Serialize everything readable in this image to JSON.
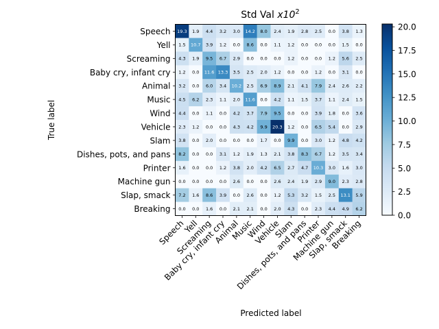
{
  "chart_data": {
    "type": "heatmap",
    "title": "Std Val ",
    "title_math": "x10",
    "title_exponent": "2",
    "xlabel": "Predicted label",
    "ylabel": "True label",
    "x_categories": [
      "Speech",
      "Yell",
      "Screaming",
      "Baby cry, infant cry",
      "Animal",
      "Music",
      "Wind",
      "Vehicle",
      "Slam",
      "Dishes, pots, and pans",
      "Printer",
      "Machine gun",
      "Slap, smack",
      "Breaking"
    ],
    "y_categories": [
      "Speech",
      "Yell",
      "Screaming",
      "Baby cry, infant cry",
      "Animal",
      "Music",
      "Wind",
      "Vehicle",
      "Slam",
      "Dishes, pots, and pans",
      "Printer",
      "Machine gun",
      "Slap, smack",
      "Breaking"
    ],
    "values": [
      [
        19.3,
        1.9,
        4.4,
        3.2,
        3.0,
        14.2,
        8.0,
        2.4,
        1.9,
        2.8,
        2.5,
        0.0,
        3.8,
        1.3
      ],
      [
        1.5,
        10.7,
        3.9,
        1.2,
        0.0,
        8.6,
        0.0,
        1.1,
        1.2,
        0.0,
        0.0,
        0.0,
        1.5,
        0.0
      ],
      [
        4.3,
        1.9,
        9.5,
        6.7,
        2.9,
        0.0,
        0.0,
        0.0,
        1.2,
        0.0,
        0.0,
        1.2,
        5.6,
        2.5
      ],
      [
        1.2,
        0.0,
        11.6,
        13.3,
        3.5,
        2.5,
        2.0,
        1.2,
        0.0,
        0.0,
        1.2,
        0.0,
        3.1,
        0.0
      ],
      [
        3.2,
        0.0,
        6.0,
        3.4,
        10.2,
        2.5,
        6.9,
        8.9,
        2.1,
        4.1,
        7.9,
        2.4,
        2.6,
        2.2
      ],
      [
        4.5,
        6.2,
        2.3,
        1.1,
        2.0,
        11.6,
        0.0,
        4.2,
        1.1,
        1.5,
        3.7,
        1.1,
        2.4,
        1.5
      ],
      [
        4.4,
        0.0,
        1.1,
        0.0,
        4.2,
        3.7,
        7.9,
        9.5,
        0.0,
        0.0,
        3.9,
        1.8,
        0.0,
        3.6
      ],
      [
        2.3,
        1.2,
        0.0,
        0.0,
        4.3,
        4.2,
        9.9,
        20.3,
        1.2,
        0.0,
        6.5,
        5.4,
        0.0,
        2.9
      ],
      [
        3.8,
        0.0,
        2.0,
        0.0,
        0.0,
        0.0,
        1.7,
        0.0,
        9.9,
        0.0,
        3.0,
        1.2,
        4.8,
        4.2
      ],
      [
        8.2,
        0.0,
        0.0,
        3.1,
        1.2,
        1.9,
        1.3,
        2.1,
        3.8,
        8.3,
        6.7,
        1.2,
        3.5,
        3.4
      ],
      [
        1.6,
        0.0,
        0.0,
        1.2,
        3.8,
        2.0,
        4.2,
        6.5,
        2.7,
        4.7,
        10.3,
        3.0,
        1.6,
        3.0
      ],
      [
        0.0,
        0.0,
        0.0,
        0.0,
        2.6,
        0.0,
        0.0,
        2.6,
        2.4,
        1.9,
        2.9,
        9.0,
        2.3,
        2.8
      ],
      [
        7.2,
        1.6,
        8.6,
        3.9,
        0.0,
        2.6,
        0.0,
        1.2,
        5.3,
        3.2,
        1.5,
        2.5,
        13.1,
        5.9
      ],
      [
        0.0,
        0.0,
        1.6,
        0.0,
        2.1,
        2.1,
        0.0,
        2.0,
        4.3,
        0.0,
        2.3,
        4.4,
        4.9,
        6.2
      ]
    ],
    "vmin": 0,
    "vmax": 20.3,
    "colormap": "Blues",
    "colorbar_ticks": [
      "0.0",
      "2.5",
      "5.0",
      "7.5",
      "10.0",
      "12.5",
      "15.0",
      "17.5",
      "20.0"
    ],
    "colorbar_tick_values": [
      0,
      2.5,
      5,
      7.5,
      10,
      12.5,
      15,
      17.5,
      20
    ],
    "text_color_dark": "#000000",
    "text_color_light": "#ffffff"
  }
}
